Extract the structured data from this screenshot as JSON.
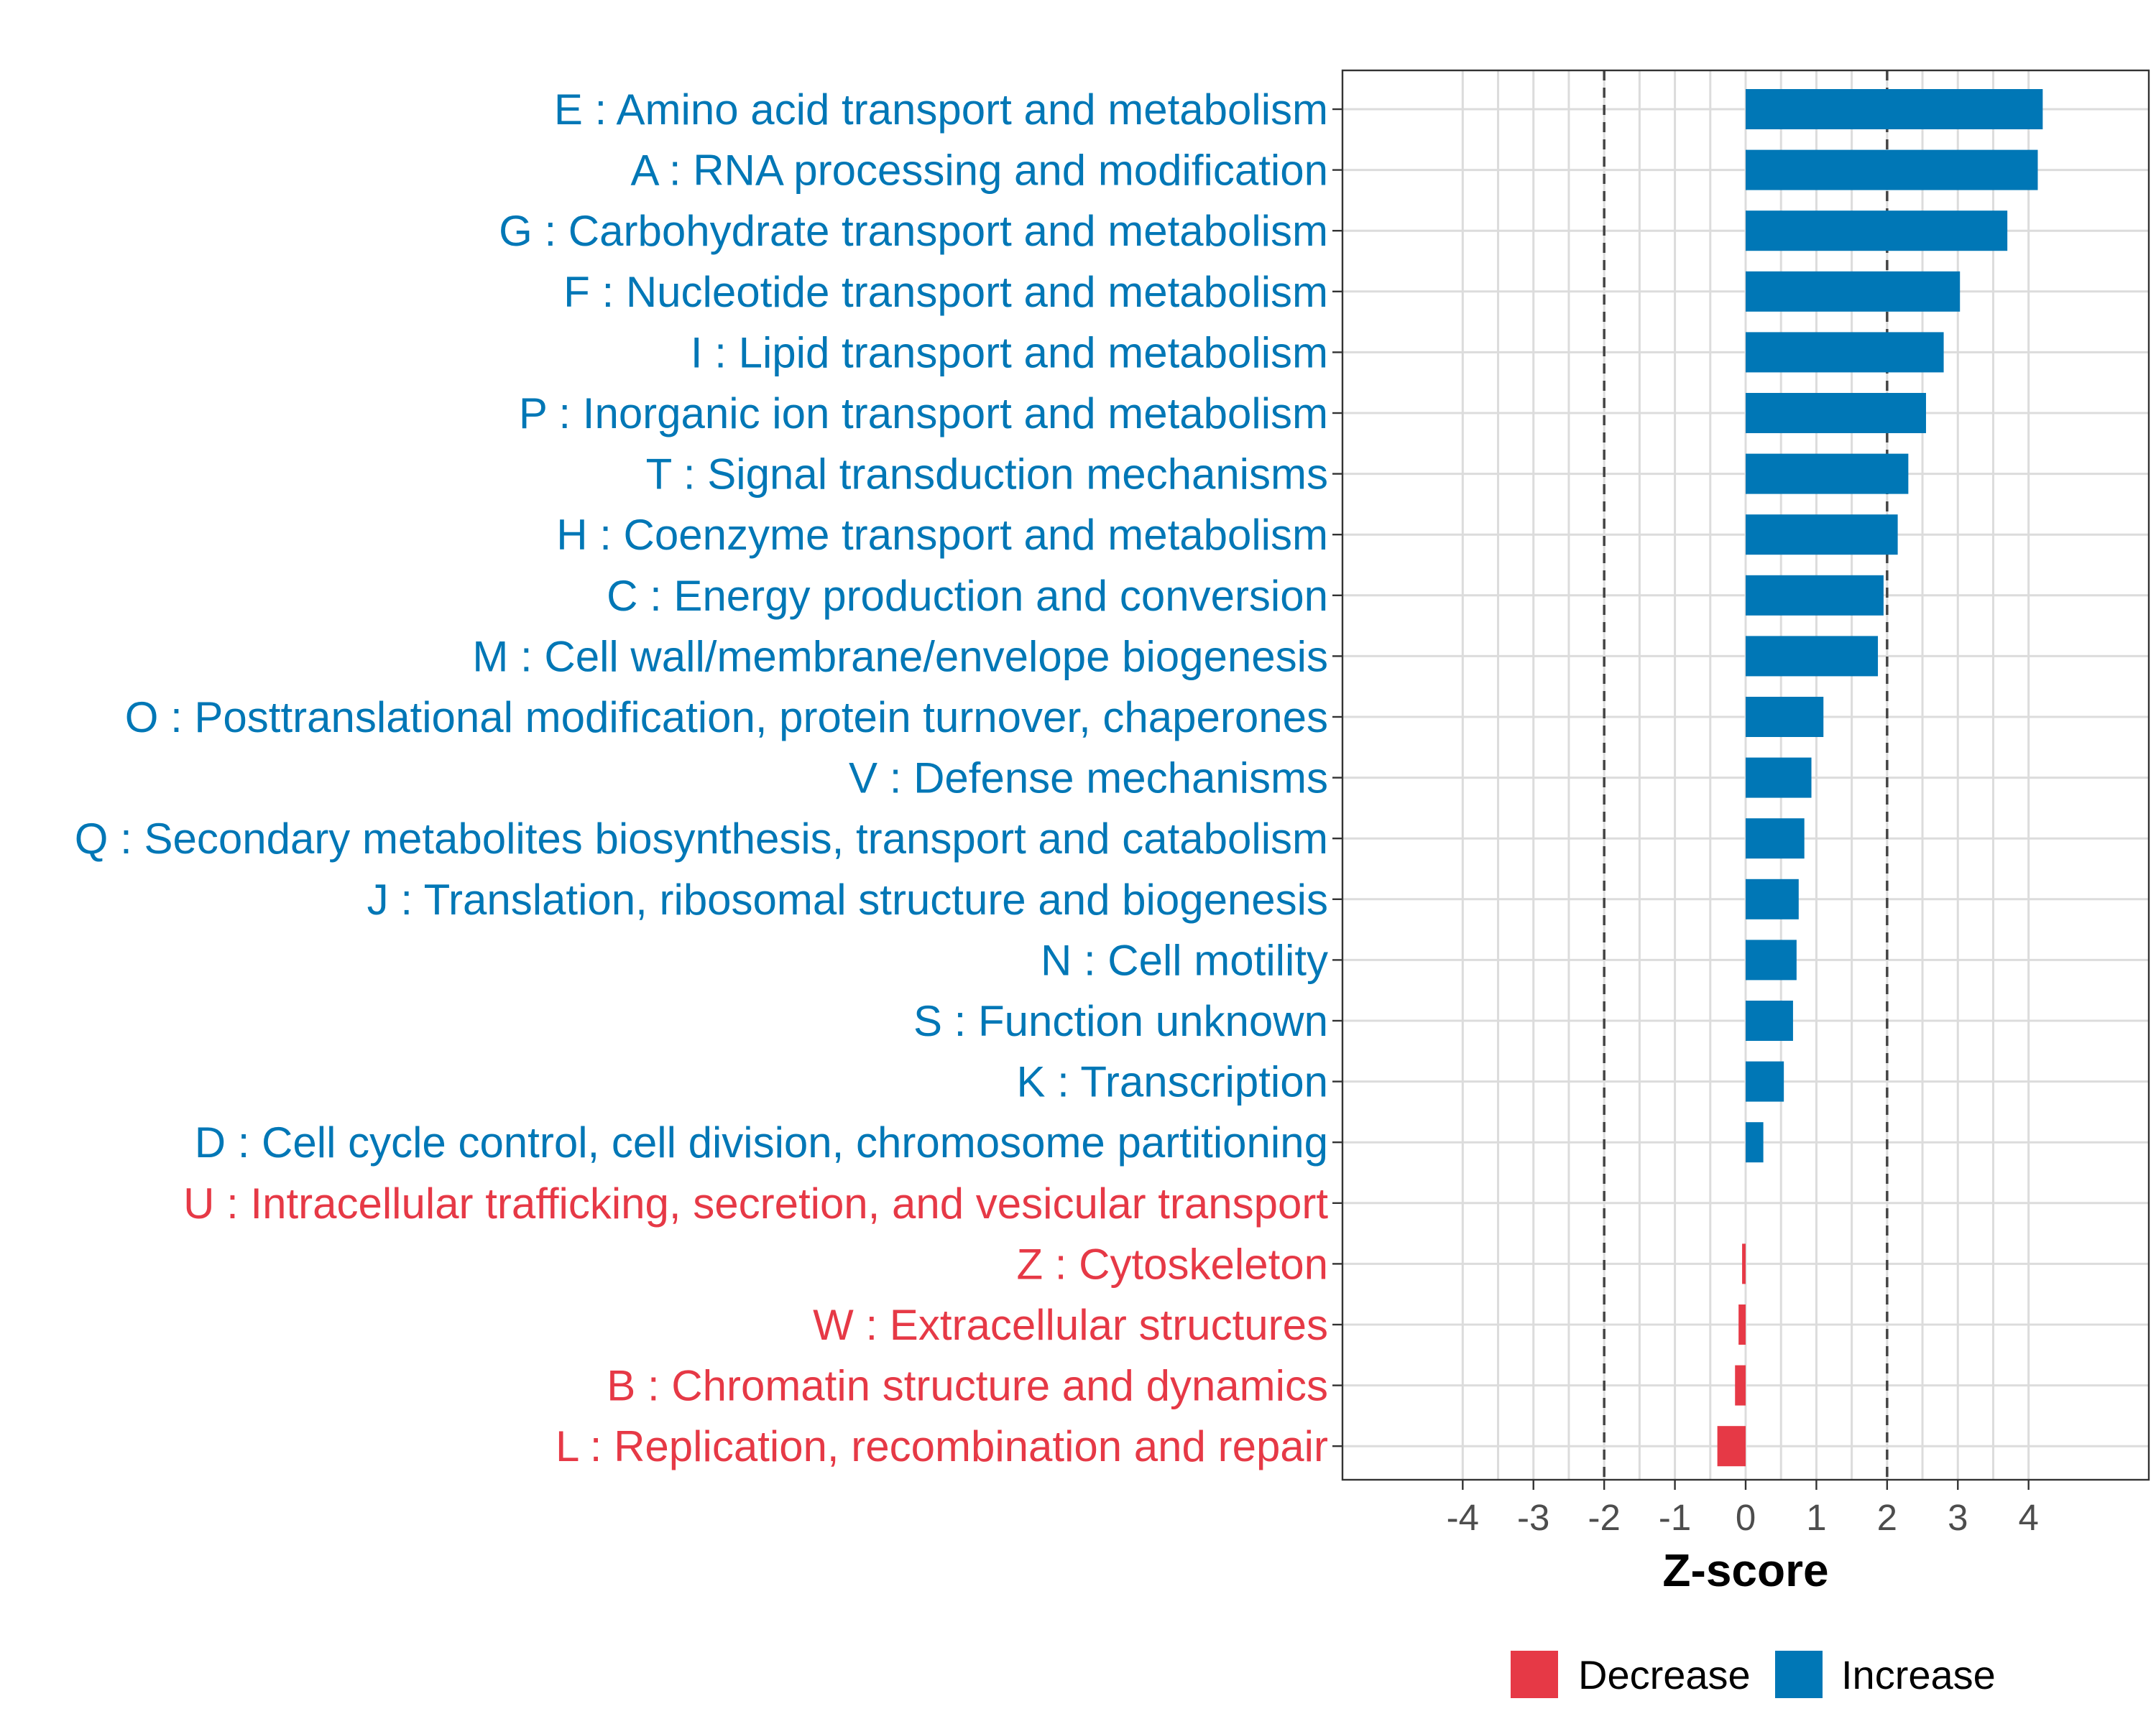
{
  "chart_data": {
    "type": "bar",
    "orientation": "horizontal",
    "xlabel": "Z-score",
    "xlim": [
      -5.7,
      5.7
    ],
    "x_ticks": [
      -4,
      -3,
      -2,
      -1,
      0,
      1,
      2,
      3,
      4
    ],
    "x_tick_labels": [
      "-4",
      "-3",
      "-2",
      "-1",
      "0",
      "1",
      "2",
      "3",
      "4"
    ],
    "reference_lines": [
      -2,
      2
    ],
    "grid": true,
    "categories": [
      "E : Amino acid transport and metabolism",
      "A : RNA processing and modification",
      "G : Carbohydrate transport and metabolism",
      "F : Nucleotide transport and metabolism",
      "I : Lipid transport and metabolism",
      "P : Inorganic ion transport and metabolism",
      "T : Signal transduction mechanisms",
      "H : Coenzyme transport and metabolism",
      "C : Energy production and conversion",
      "M : Cell wall/membrane/envelope biogenesis",
      "O : Posttranslational modification, protein turnover, chaperones",
      "V : Defense mechanisms",
      "Q : Secondary metabolites biosynthesis, transport and catabolism",
      "J : Translation, ribosomal structure and biogenesis",
      "N : Cell motility",
      "S : Function unknown",
      "K : Transcription",
      "D : Cell cycle control, cell division, chromosome partitioning",
      "U : Intracellular trafficking, secretion, and vesicular transport",
      "Z : Cytoskeleton",
      "W : Extracellular structures",
      "B : Chromatin structure and dynamics",
      "L : Replication, recombination and repair"
    ],
    "values": [
      4.2,
      4.13,
      3.7,
      3.03,
      2.8,
      2.55,
      2.3,
      2.15,
      1.95,
      1.87,
      1.1,
      0.93,
      0.83,
      0.75,
      0.72,
      0.67,
      0.54,
      0.25,
      0.0,
      -0.05,
      -0.1,
      -0.15,
      -0.4
    ],
    "groups": [
      "Increase",
      "Increase",
      "Increase",
      "Increase",
      "Increase",
      "Increase",
      "Increase",
      "Increase",
      "Increase",
      "Increase",
      "Increase",
      "Increase",
      "Increase",
      "Increase",
      "Increase",
      "Increase",
      "Increase",
      "Increase",
      "Decrease",
      "Decrease",
      "Decrease",
      "Decrease",
      "Decrease"
    ],
    "legend": {
      "placement": "bottom",
      "entries": [
        {
          "label": "Decrease",
          "color": "#E63946"
        },
        {
          "label": "Increase",
          "color": "#0077B6"
        }
      ]
    }
  }
}
